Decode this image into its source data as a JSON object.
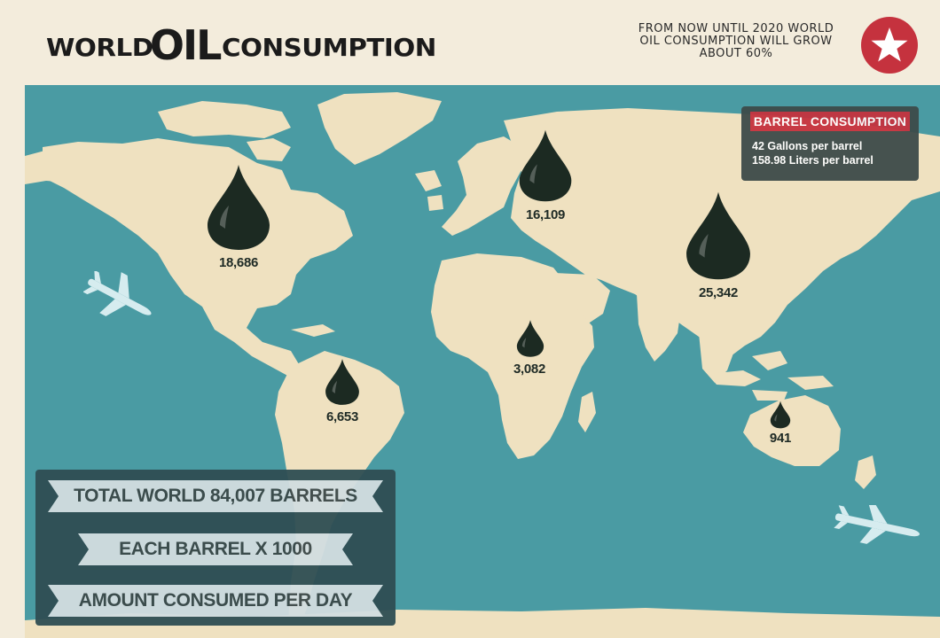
{
  "header": {
    "title_part1": "WORLD",
    "title_part2": "OIL",
    "title_part3": "CONSUMPTION",
    "note_line1": "FROM NOW UNTIL 2020 WORLD",
    "note_line2": "OIL CONSUMPTION WILL GROW",
    "note_line3": "ABOUT 60%",
    "badge_icon": "star-icon"
  },
  "legend": {
    "title": "BARREL CONSUMPTION",
    "line1": "42 Gallons per barrel",
    "line2": "158.98 Liters per barrel"
  },
  "regions": [
    {
      "name": "north-america",
      "value": "18,686"
    },
    {
      "name": "europe-russia",
      "value": "16,109"
    },
    {
      "name": "asia",
      "value": "25,342"
    },
    {
      "name": "africa",
      "value": "3,082"
    },
    {
      "name": "south-america",
      "value": "6,653"
    },
    {
      "name": "australia",
      "value": "941"
    }
  ],
  "info": {
    "total": "TOTAL WORLD 84,007 BARRELS",
    "unit": "EACH BARREL X 1000",
    "period": "AMOUNT CONSUMED PER DAY"
  },
  "colors": {
    "ocean": "#4a9ba3",
    "land": "#efe1c0",
    "drop": "#1c2a22",
    "accent": "#c5323e",
    "background": "#f3ecdc"
  },
  "icons": [
    "star-icon",
    "oil-drop-icon",
    "airplane-icon"
  ]
}
